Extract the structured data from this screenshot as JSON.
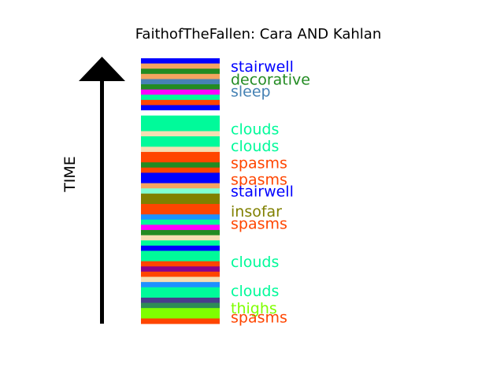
{
  "chart_data": {
    "type": "bar",
    "title": "FaithofTheFallen: Cara AND Kahlan",
    "ylabel": "TIME",
    "segments": [
      {
        "color": "#0000ff"
      },
      {
        "color": "#f4a460"
      },
      {
        "color": "#228b22"
      },
      {
        "color": "#f4a460"
      },
      {
        "color": "#4682b4"
      },
      {
        "color": "#228b22"
      },
      {
        "color": "#ff00ff"
      },
      {
        "color": "#00fa9a"
      },
      {
        "color": "#ff4500"
      },
      {
        "color": "#0000ff"
      },
      {
        "color": "#ffffff"
      },
      {
        "color": "#00fa9a"
      },
      {
        "color": "#00fa9a"
      },
      {
        "color": "#00fa9a"
      },
      {
        "color": "#f5deb3"
      },
      {
        "color": "#00fa9a"
      },
      {
        "color": "#00fa9a"
      },
      {
        "color": "#f5deb3"
      },
      {
        "color": "#ff4500"
      },
      {
        "color": "#ff4500"
      },
      {
        "color": "#228b22"
      },
      {
        "color": "#ff4500"
      },
      {
        "color": "#0000ff"
      },
      {
        "color": "#0000ff"
      },
      {
        "color": "#f4a460"
      },
      {
        "color": "#7fffd4"
      },
      {
        "color": "#808000"
      },
      {
        "color": "#808000"
      },
      {
        "color": "#ff4500"
      },
      {
        "color": "#ff4500"
      },
      {
        "color": "#1e90ff"
      },
      {
        "color": "#00fa9a"
      },
      {
        "color": "#ff00ff"
      },
      {
        "color": "#228b22"
      },
      {
        "color": "#f5deb3"
      },
      {
        "color": "#00fa9a"
      },
      {
        "color": "#0000ff"
      },
      {
        "color": "#00fa9a"
      },
      {
        "color": "#00fa9a"
      },
      {
        "color": "#ff4500"
      },
      {
        "color": "#8b008b"
      },
      {
        "color": "#ff4500"
      },
      {
        "color": "#f5deb3"
      },
      {
        "color": "#1e90ff"
      },
      {
        "color": "#00fa9a"
      },
      {
        "color": "#00fa9a"
      },
      {
        "color": "#483d8b"
      },
      {
        "color": "#2e8b57"
      },
      {
        "color": "#7fff00"
      },
      {
        "color": "#7fff00"
      },
      {
        "color": "#ff4500"
      }
    ],
    "labels": [
      {
        "text": "stairwell",
        "color": "#0000ff",
        "position": 0.03
      },
      {
        "text": "decorative",
        "color": "#228b22",
        "position": 0.078
      },
      {
        "text": "sleep",
        "color": "#4682b4",
        "position": 0.123
      },
      {
        "text": "clouds",
        "color": "#00fa9a",
        "position": 0.265
      },
      {
        "text": "clouds",
        "color": "#00fa9a",
        "position": 0.33
      },
      {
        "text": "spasms",
        "color": "#ff4500",
        "position": 0.393
      },
      {
        "text": "spasms",
        "color": "#ff4500",
        "position": 0.455
      },
      {
        "text": "stairwell",
        "color": "#0000ff",
        "position": 0.5
      },
      {
        "text": "insofar",
        "color": "#808000",
        "position": 0.575
      },
      {
        "text": "spasms",
        "color": "#ff4500",
        "position": 0.622
      },
      {
        "text": "clouds",
        "color": "#00fa9a",
        "position": 0.765
      },
      {
        "text": "clouds",
        "color": "#00fa9a",
        "position": 0.875
      },
      {
        "text": "thighs",
        "color": "#7fff00",
        "position": 0.94
      },
      {
        "text": "spasms",
        "color": "#ff4500",
        "position": 0.975
      }
    ]
  }
}
